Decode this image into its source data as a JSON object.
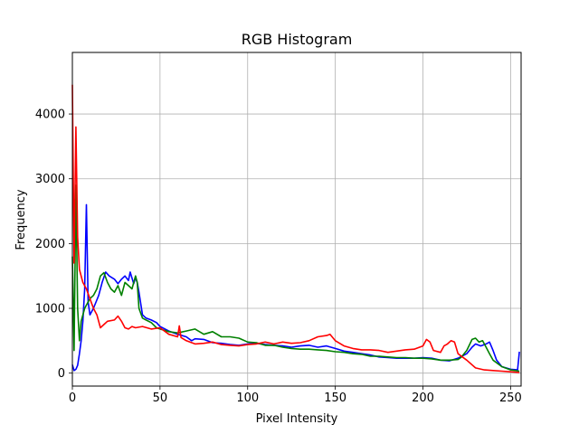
{
  "chart_data": {
    "type": "line",
    "title": "RGB Histogram",
    "xlabel": "Pixel Intensity",
    "ylabel": "Frequency",
    "xlim": [
      0,
      256
    ],
    "ylim": [
      -200,
      4950
    ],
    "xticks": [
      0,
      50,
      100,
      150,
      200,
      250
    ],
    "yticks": [
      0,
      1000,
      2000,
      3000,
      4000
    ],
    "grid": true,
    "legend": "none",
    "series": [
      {
        "color": "#0000ff",
        "points": [
          [
            0,
            130
          ],
          [
            1,
            40
          ],
          [
            2,
            60
          ],
          [
            3,
            120
          ],
          [
            4,
            300
          ],
          [
            5,
            500
          ],
          [
            6,
            800
          ],
          [
            7,
            1300
          ],
          [
            8,
            2600
          ],
          [
            9,
            1100
          ],
          [
            10,
            900
          ],
          [
            12,
            1000
          ],
          [
            15,
            1200
          ],
          [
            17,
            1400
          ],
          [
            19,
            1560
          ],
          [
            21,
            1500
          ],
          [
            24,
            1450
          ],
          [
            26,
            1380
          ],
          [
            28,
            1450
          ],
          [
            30,
            1500
          ],
          [
            32,
            1430
          ],
          [
            33,
            1560
          ],
          [
            35,
            1380
          ],
          [
            36,
            1470
          ],
          [
            37,
            1400
          ],
          [
            38,
            1250
          ],
          [
            40,
            900
          ],
          [
            42,
            850
          ],
          [
            45,
            820
          ],
          [
            48,
            780
          ],
          [
            50,
            720
          ],
          [
            55,
            650
          ],
          [
            60,
            600
          ],
          [
            65,
            560
          ],
          [
            68,
            500
          ],
          [
            70,
            530
          ],
          [
            75,
            520
          ],
          [
            80,
            470
          ],
          [
            85,
            460
          ],
          [
            90,
            440
          ],
          [
            95,
            430
          ],
          [
            100,
            450
          ],
          [
            105,
            460
          ],
          [
            110,
            440
          ],
          [
            115,
            430
          ],
          [
            120,
            420
          ],
          [
            125,
            400
          ],
          [
            130,
            420
          ],
          [
            135,
            430
          ],
          [
            140,
            400
          ],
          [
            145,
            420
          ],
          [
            150,
            380
          ],
          [
            155,
            340
          ],
          [
            160,
            320
          ],
          [
            165,
            300
          ],
          [
            170,
            280
          ],
          [
            175,
            250
          ],
          [
            180,
            240
          ],
          [
            185,
            230
          ],
          [
            190,
            230
          ],
          [
            195,
            230
          ],
          [
            200,
            240
          ],
          [
            205,
            230
          ],
          [
            210,
            200
          ],
          [
            215,
            190
          ],
          [
            220,
            230
          ],
          [
            225,
            300
          ],
          [
            228,
            400
          ],
          [
            230,
            450
          ],
          [
            233,
            420
          ],
          [
            236,
            450
          ],
          [
            238,
            480
          ],
          [
            240,
            350
          ],
          [
            242,
            200
          ],
          [
            245,
            100
          ],
          [
            250,
            60
          ],
          [
            254,
            50
          ],
          [
            255,
            330
          ]
        ]
      },
      {
        "color": "#008000",
        "points": [
          [
            0,
            1800
          ],
          [
            1,
            350
          ],
          [
            2,
            2900
          ],
          [
            3,
            1000
          ],
          [
            4,
            500
          ],
          [
            5,
            800
          ],
          [
            7,
            1000
          ],
          [
            10,
            1150
          ],
          [
            12,
            1200
          ],
          [
            14,
            1300
          ],
          [
            16,
            1500
          ],
          [
            18,
            1550
          ],
          [
            20,
            1400
          ],
          [
            22,
            1300
          ],
          [
            24,
            1250
          ],
          [
            26,
            1350
          ],
          [
            28,
            1200
          ],
          [
            30,
            1400
          ],
          [
            32,
            1350
          ],
          [
            34,
            1300
          ],
          [
            36,
            1500
          ],
          [
            37,
            1400
          ],
          [
            38,
            1000
          ],
          [
            40,
            850
          ],
          [
            42,
            820
          ],
          [
            45,
            780
          ],
          [
            48,
            700
          ],
          [
            50,
            680
          ],
          [
            55,
            640
          ],
          [
            60,
            620
          ],
          [
            65,
            650
          ],
          [
            70,
            680
          ],
          [
            75,
            600
          ],
          [
            80,
            640
          ],
          [
            85,
            560
          ],
          [
            90,
            560
          ],
          [
            95,
            540
          ],
          [
            100,
            480
          ],
          [
            105,
            470
          ],
          [
            110,
            430
          ],
          [
            115,
            430
          ],
          [
            120,
            400
          ],
          [
            125,
            380
          ],
          [
            130,
            370
          ],
          [
            135,
            370
          ],
          [
            140,
            360
          ],
          [
            145,
            350
          ],
          [
            150,
            330
          ],
          [
            155,
            320
          ],
          [
            160,
            300
          ],
          [
            165,
            290
          ],
          [
            170,
            260
          ],
          [
            175,
            260
          ],
          [
            180,
            250
          ],
          [
            185,
            240
          ],
          [
            190,
            240
          ],
          [
            195,
            230
          ],
          [
            200,
            230
          ],
          [
            205,
            220
          ],
          [
            210,
            200
          ],
          [
            215,
            200
          ],
          [
            220,
            210
          ],
          [
            222,
            250
          ],
          [
            225,
            350
          ],
          [
            228,
            520
          ],
          [
            230,
            540
          ],
          [
            232,
            480
          ],
          [
            234,
            500
          ],
          [
            236,
            400
          ],
          [
            238,
            300
          ],
          [
            240,
            200
          ],
          [
            245,
            100
          ],
          [
            250,
            50
          ],
          [
            255,
            30
          ]
        ]
      },
      {
        "color": "#ff0000",
        "points": [
          [
            0,
            4450
          ],
          [
            1,
            1700
          ],
          [
            2,
            3800
          ],
          [
            3,
            2100
          ],
          [
            4,
            1600
          ],
          [
            6,
            1400
          ],
          [
            8,
            1300
          ],
          [
            10,
            1150
          ],
          [
            12,
            1000
          ],
          [
            14,
            900
          ],
          [
            16,
            700
          ],
          [
            18,
            750
          ],
          [
            20,
            800
          ],
          [
            24,
            820
          ],
          [
            26,
            880
          ],
          [
            28,
            800
          ],
          [
            30,
            700
          ],
          [
            32,
            680
          ],
          [
            34,
            720
          ],
          [
            36,
            700
          ],
          [
            40,
            720
          ],
          [
            45,
            680
          ],
          [
            50,
            700
          ],
          [
            55,
            600
          ],
          [
            60,
            560
          ],
          [
            61,
            730
          ],
          [
            62,
            550
          ],
          [
            65,
            500
          ],
          [
            70,
            450
          ],
          [
            75,
            460
          ],
          [
            80,
            480
          ],
          [
            85,
            440
          ],
          [
            90,
            430
          ],
          [
            95,
            420
          ],
          [
            100,
            440
          ],
          [
            105,
            450
          ],
          [
            110,
            480
          ],
          [
            115,
            450
          ],
          [
            120,
            480
          ],
          [
            125,
            460
          ],
          [
            130,
            470
          ],
          [
            135,
            500
          ],
          [
            140,
            560
          ],
          [
            145,
            580
          ],
          [
            147,
            600
          ],
          [
            150,
            500
          ],
          [
            155,
            420
          ],
          [
            160,
            380
          ],
          [
            165,
            360
          ],
          [
            170,
            360
          ],
          [
            175,
            350
          ],
          [
            180,
            320
          ],
          [
            185,
            340
          ],
          [
            190,
            360
          ],
          [
            195,
            370
          ],
          [
            200,
            420
          ],
          [
            202,
            520
          ],
          [
            204,
            480
          ],
          [
            206,
            350
          ],
          [
            210,
            320
          ],
          [
            212,
            420
          ],
          [
            214,
            450
          ],
          [
            216,
            500
          ],
          [
            218,
            480
          ],
          [
            220,
            300
          ],
          [
            225,
            200
          ],
          [
            230,
            80
          ],
          [
            235,
            50
          ],
          [
            240,
            40
          ],
          [
            245,
            30
          ],
          [
            250,
            20
          ],
          [
            255,
            10
          ]
        ]
      }
    ]
  }
}
